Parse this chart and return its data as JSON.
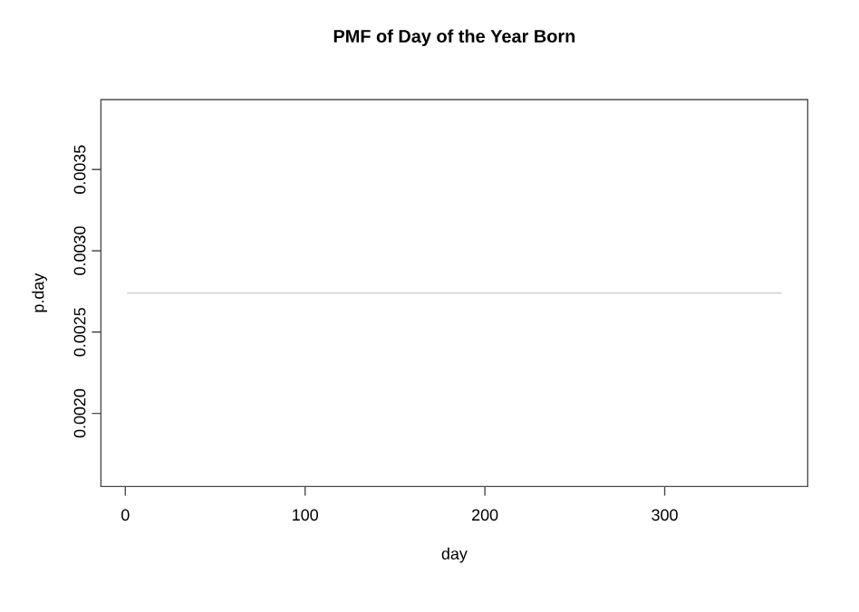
{
  "chart_data": {
    "type": "line",
    "title": "PMF of Day of the Year Born",
    "xlabel": "day",
    "ylabel": "p.day",
    "x": [
      1,
      365
    ],
    "series": [
      {
        "color": "#d3d3d3",
        "values": [
          0.00274,
          0.00274
        ]
      }
    ],
    "xlim": [
      -13.56,
      379.56
    ],
    "xticks": [
      0,
      100,
      200,
      300
    ],
    "ylim": [
      0.00155,
      0.00393
    ],
    "yticks": [
      {
        "value": 0.002,
        "label": "0.0020"
      },
      {
        "value": 0.0025,
        "label": "0.0025"
      },
      {
        "value": 0.003,
        "label": "0.0030"
      },
      {
        "value": 0.0035,
        "label": "0.0035"
      }
    ],
    "grid": false,
    "marker": "none",
    "line_style": "solid"
  }
}
